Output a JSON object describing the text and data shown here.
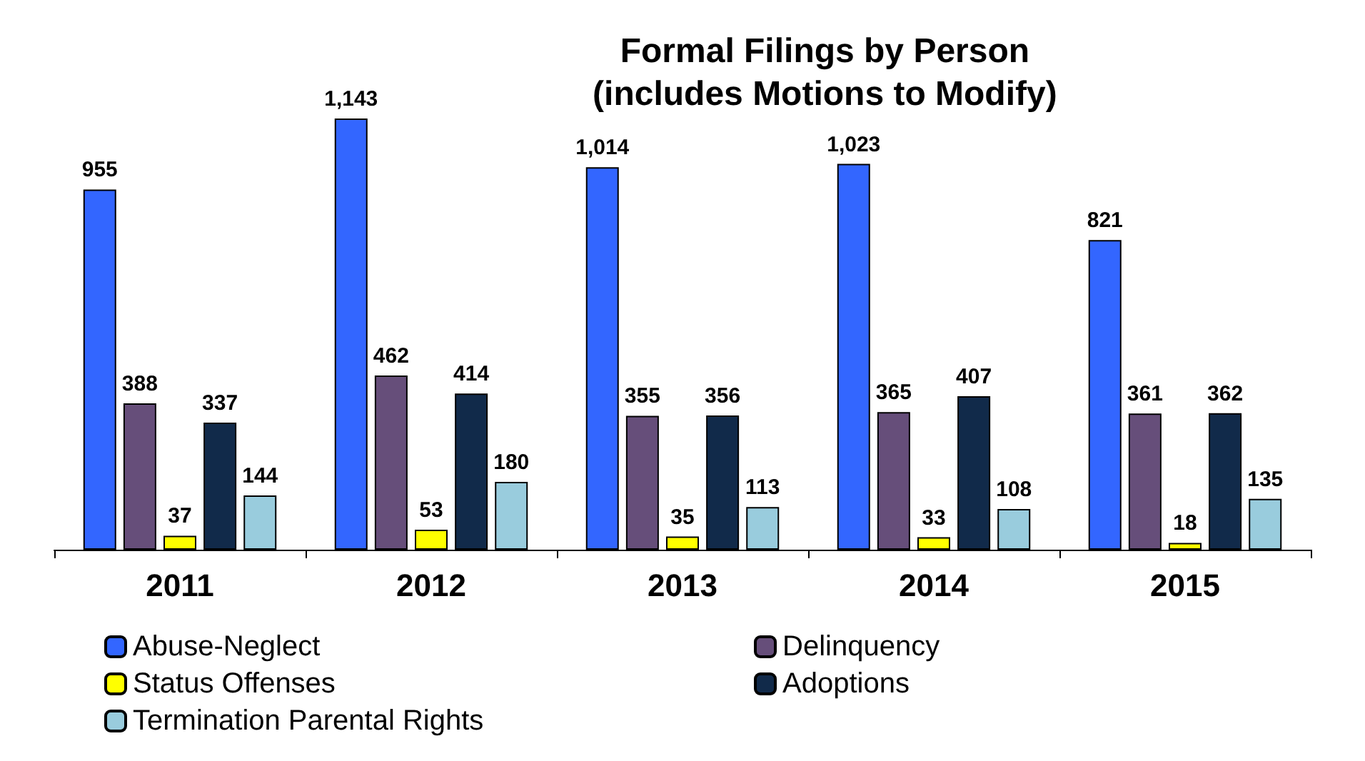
{
  "chart_data": {
    "type": "bar",
    "title": "Formal Filings by Person\n(includes Motions to Modify)",
    "categories": [
      "2011",
      "2012",
      "2013",
      "2014",
      "2015"
    ],
    "series": [
      {
        "name": "Abuse-Neglect",
        "color": "#3366ff",
        "values": [
          955,
          1143,
          1014,
          1023,
          821
        ],
        "value_labels": [
          "955",
          "1,143",
          "1,014",
          "1,023",
          "821"
        ]
      },
      {
        "name": "Delinquency",
        "color": "#664e7a",
        "values": [
          388,
          462,
          355,
          365,
          361
        ],
        "value_labels": [
          "388",
          "462",
          "355",
          "365",
          "361"
        ]
      },
      {
        "name": "Status Offenses",
        "color": "#ffff00",
        "values": [
          37,
          53,
          35,
          33,
          18
        ],
        "value_labels": [
          "37",
          "53",
          "35",
          "33",
          "18"
        ]
      },
      {
        "name": "Adoptions",
        "color": "#112a4a",
        "values": [
          337,
          414,
          356,
          407,
          362
        ],
        "value_labels": [
          "337",
          "414",
          "356",
          "407",
          "362"
        ]
      },
      {
        "name": "Termination Parental Rights",
        "color": "#99ccdd",
        "values": [
          144,
          180,
          113,
          108,
          135
        ],
        "value_labels": [
          "144",
          "180",
          "113",
          "108",
          "135"
        ]
      }
    ],
    "legend": "bottom",
    "grid": false
  }
}
